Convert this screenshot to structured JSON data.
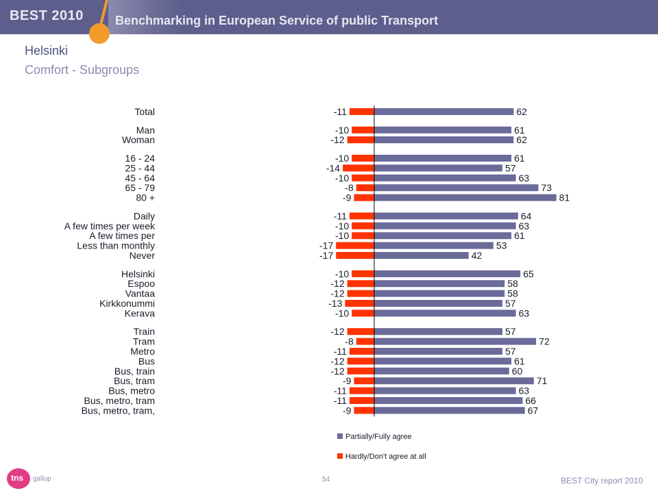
{
  "header": {
    "brand": "BEST 2010",
    "headline": "Benchmarking in European Service of public Transport"
  },
  "titles": {
    "city": "Helsinki",
    "subtitle": "Comfort - Subgroups"
  },
  "colors": {
    "header_bg": "#5d5e8c",
    "agree": "#6a6b99",
    "disagree": "#ff3300",
    "accent_orange": "#f39c2b"
  },
  "chart_data": {
    "type": "bar",
    "orientation": "horizontal-diverging",
    "categories": [
      "Total",
      "Man",
      "Woman",
      "16 - 24",
      "25 - 44",
      "45 - 64",
      "65 - 79",
      "80 +",
      "Daily",
      "A few times per week",
      "A few times per",
      "Less than monthly",
      "Never",
      "Helsinki",
      "Espoo",
      "Vantaa",
      "Kirkkonummi",
      "Kerava",
      "Train",
      "Tram",
      "Metro",
      "Bus",
      "Bus, train",
      "Bus, tram",
      "Bus, metro",
      "Bus, metro, tram",
      "Bus, metro, tram,"
    ],
    "groups": [
      1,
      2,
      5,
      5,
      5,
      9
    ],
    "series": [
      {
        "name": "Partially/Fully agree",
        "color": "#6a6b99",
        "values": [
          62,
          61,
          62,
          61,
          57,
          63,
          73,
          81,
          64,
          63,
          61,
          53,
          42,
          65,
          58,
          58,
          57,
          63,
          57,
          72,
          57,
          61,
          60,
          71,
          63,
          66,
          67
        ]
      },
      {
        "name": "Hardly/Don't agree at all",
        "color": "#ff3300",
        "values": [
          -11,
          -10,
          -12,
          -10,
          -14,
          -10,
          -8,
          -9,
          -11,
          -10,
          -10,
          -17,
          -17,
          -10,
          -12,
          -12,
          -13,
          -10,
          -12,
          -8,
          -11,
          -12,
          -12,
          -9,
          -11,
          -11,
          -9
        ]
      }
    ],
    "legend_position": "bottom-right"
  },
  "footer": {
    "page_number": "54",
    "report": "BEST City report 2010",
    "logo_main": "tns",
    "logo_sub": "gallup"
  }
}
